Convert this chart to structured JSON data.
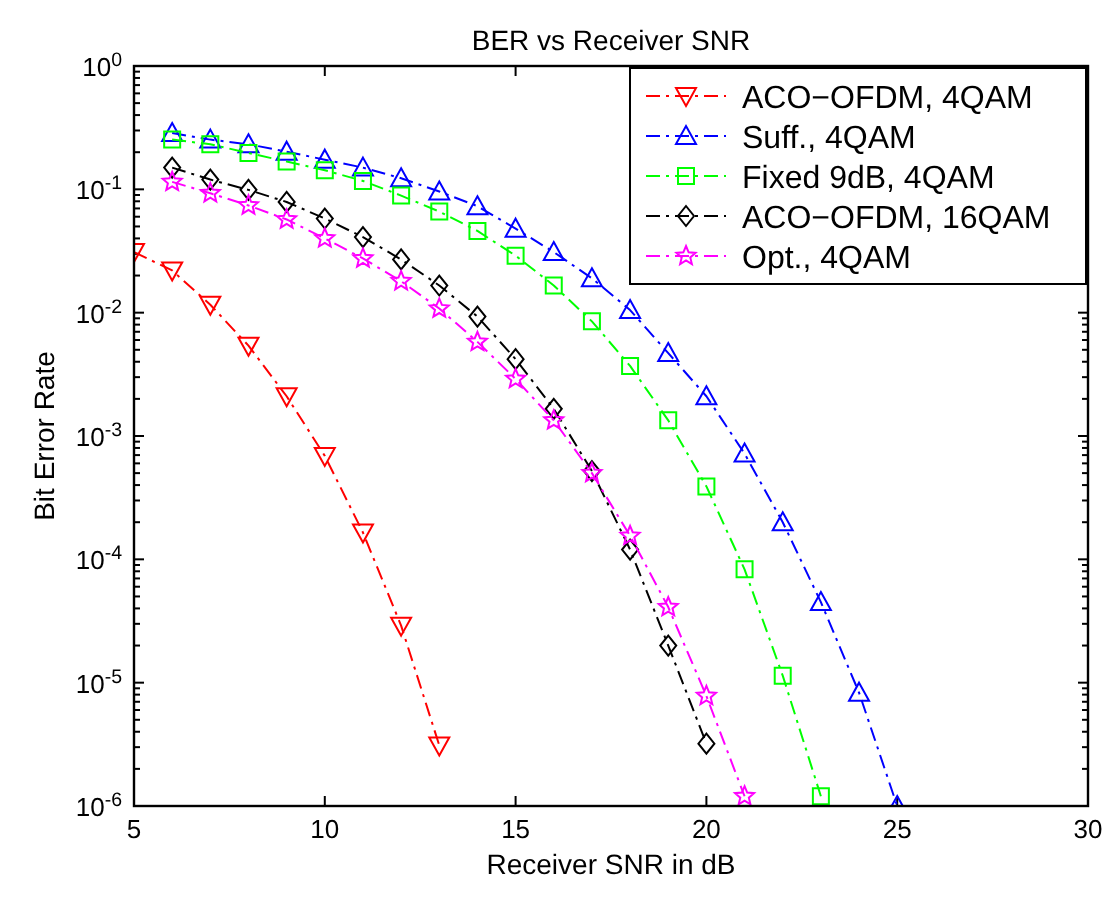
{
  "chart_data": {
    "type": "line",
    "title": "BER vs Receiver SNR",
    "xlabel": "Receiver SNR in dB",
    "ylabel": "Bit Error Rate",
    "log": "y",
    "xlim": [
      5,
      30
    ],
    "xticks": [
      5,
      10,
      15,
      20,
      25,
      30
    ],
    "ylim": [
      1e-06,
      1
    ],
    "yticks": [
      {
        "value": 1e-06,
        "label": "10$^{-6}$"
      },
      {
        "value": 1e-05,
        "label": "10$^{-5}$"
      },
      {
        "value": 0.0001,
        "label": "10$^{-4}$"
      },
      {
        "value": 0.001,
        "label": "10$^{-3}$"
      },
      {
        "value": 0.01,
        "label": "10$^{-2}$"
      },
      {
        "value": 0.1,
        "label": "10$^{-1}$"
      },
      {
        "value": 1,
        "label": "10$^{0}$"
      }
    ],
    "legend": "top right",
    "line_style": "dashed",
    "grid": false,
    "series": [
      {
        "name": "ACO−OFDM, 4QAM",
        "color": "#ff0000",
        "marker": "triangle-down",
        "x": [
          5,
          6,
          7,
          8,
          9,
          10,
          11,
          12,
          13
        ],
        "values": [
          0.031,
          0.022,
          0.0116,
          0.0054,
          0.0021,
          0.00069,
          0.000165,
          2.9e-05,
          3.1e-06
        ]
      },
      {
        "name": "Suff., 4QAM",
        "color": "#0000ff",
        "marker": "triangle",
        "x": [
          6,
          7,
          8,
          9,
          10,
          11,
          12,
          13,
          14,
          15,
          16,
          17,
          18,
          19,
          20,
          21,
          22,
          23,
          24,
          25
        ],
        "values": [
          0.286,
          0.253,
          0.232,
          0.202,
          0.174,
          0.15,
          0.123,
          0.096,
          0.073,
          0.048,
          0.031,
          0.019,
          0.0105,
          0.0047,
          0.0021,
          0.00072,
          0.0002,
          4.5e-05,
          8.3e-06,
          1e-06
        ]
      },
      {
        "name": "Fixed 9dB, 4QAM",
        "color": "#00ff00",
        "marker": "square",
        "x": [
          6,
          7,
          8,
          9,
          10,
          11,
          12,
          13,
          14,
          15,
          16,
          17,
          18,
          19,
          20,
          21,
          22,
          23
        ],
        "values": [
          0.253,
          0.232,
          0.197,
          0.168,
          0.143,
          0.117,
          0.089,
          0.066,
          0.046,
          0.029,
          0.0166,
          0.0085,
          0.0037,
          0.00134,
          0.00039,
          8.3e-05,
          1.14e-05,
          1.2e-06
        ]
      },
      {
        "name": "ACO−OFDM, 16QAM",
        "color": "#000000",
        "marker": "diamond",
        "x": [
          6,
          7,
          8,
          9,
          10,
          11,
          12,
          13,
          14,
          15,
          16,
          17,
          18,
          19,
          20
        ],
        "values": [
          0.15,
          0.12,
          0.099,
          0.079,
          0.058,
          0.041,
          0.027,
          0.0166,
          0.0093,
          0.0042,
          0.00166,
          0.00052,
          0.00012,
          2e-05,
          3.2e-06
        ]
      },
      {
        "name": "Opt., 4QAM",
        "color": "#ff00ff",
        "marker": "star",
        "x": [
          6,
          7,
          8,
          9,
          10,
          11,
          12,
          13,
          14,
          15,
          16,
          17,
          18,
          19,
          20,
          21
        ],
        "values": [
          0.115,
          0.093,
          0.074,
          0.057,
          0.04,
          0.0275,
          0.018,
          0.0108,
          0.0058,
          0.0029,
          0.00134,
          0.0005,
          0.000155,
          4.1e-05,
          7.8e-06,
          1.2e-06
        ]
      }
    ]
  }
}
